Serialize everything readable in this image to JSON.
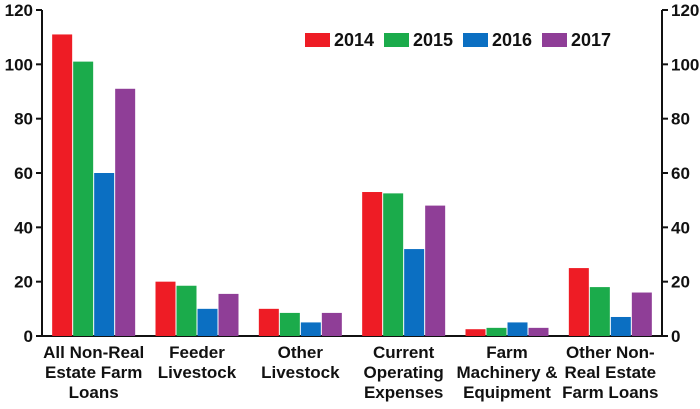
{
  "chart_data": {
    "type": "bar",
    "categories": [
      [
        "All Non-Real",
        "Estate Farm",
        "Loans"
      ],
      [
        "Feeder",
        "Livestock"
      ],
      [
        "Other",
        "Livestock"
      ],
      [
        "Current",
        "Operating",
        "Expenses"
      ],
      [
        "Farm",
        "Machinery &",
        "Equipment"
      ],
      [
        "Other Non-",
        "Real Estate",
        "Farm Loans"
      ]
    ],
    "series": [
      {
        "name": "2014",
        "color": "#ee1c25",
        "values": [
          111,
          20,
          10,
          53,
          2.5,
          25
        ]
      },
      {
        "name": "2015",
        "color": "#1bab4b",
        "values": [
          101,
          18.5,
          8.5,
          52.5,
          3,
          18
        ]
      },
      {
        "name": "2016",
        "color": "#0b6fc2",
        "values": [
          60,
          10,
          5,
          32,
          5,
          7
        ]
      },
      {
        "name": "2017",
        "color": "#8f3e97",
        "values": [
          91,
          15.5,
          8.5,
          48,
          3,
          16
        ]
      }
    ],
    "ylim": [
      0,
      120
    ],
    "yticks": [
      0,
      20,
      40,
      60,
      80,
      100,
      120
    ],
    "y_axis_both_sides": true,
    "grid": false,
    "legend_position": "top-right",
    "title": "",
    "xlabel": "",
    "ylabel": ""
  }
}
